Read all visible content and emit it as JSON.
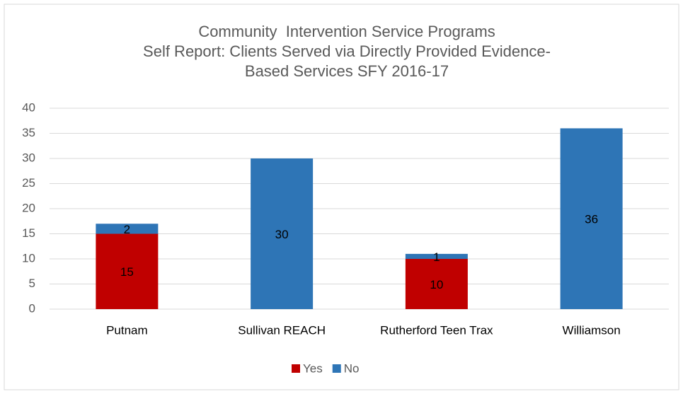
{
  "chart_data": {
    "type": "stacked_bar",
    "title": [
      "Community  Intervention Service Programs",
      "Self Report: Clients Served via Directly Provided Evidence-",
      "Based Services SFY 2016-17"
    ],
    "categories": [
      "Putnam",
      "Sullivan REACH",
      "Rutherford Teen Trax",
      "Williamson"
    ],
    "series": [
      {
        "name": "Yes",
        "color": "#c00000",
        "values": [
          15,
          null,
          10,
          null
        ]
      },
      {
        "name": "No",
        "color": "#2e75b6",
        "values": [
          2,
          30,
          1,
          36
        ]
      }
    ],
    "ylim": [
      0,
      40
    ],
    "yticks": [
      0,
      5,
      10,
      15,
      20,
      25,
      30,
      35,
      40
    ],
    "grid": true,
    "legend": "bottom"
  }
}
